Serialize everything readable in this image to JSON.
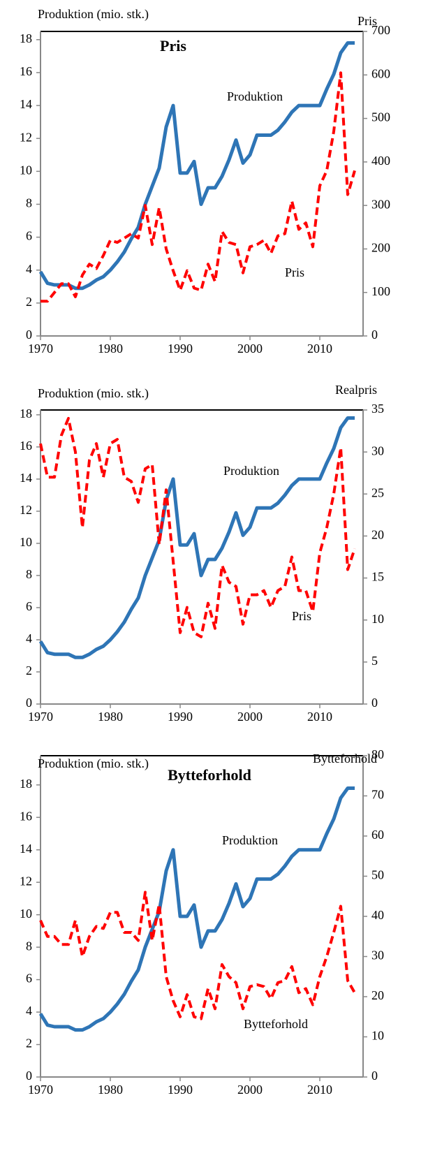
{
  "chart_data": [
    {
      "type": "line",
      "title": "Pris",
      "ylabel": "Produktion (mio. stk.)",
      "y2label": "Pris",
      "x": [
        1970,
        1971,
        1972,
        1973,
        1974,
        1975,
        1976,
        1977,
        1978,
        1979,
        1980,
        1981,
        1982,
        1983,
        1984,
        1985,
        1986,
        1987,
        1988,
        1989,
        1990,
        1991,
        1992,
        1993,
        1994,
        1995,
        1996,
        1997,
        1998,
        1999,
        2000,
        2001,
        2002,
        2003,
        2004,
        2005,
        2006,
        2007,
        2008,
        2009,
        2010,
        2011,
        2012,
        2013,
        2014,
        2015
      ],
      "xlim": [
        1970,
        2016.2
      ],
      "xticks": [
        1970,
        1980,
        1990,
        2000,
        2010
      ],
      "ylim": [
        0,
        18.5
      ],
      "yticks": [
        0,
        2,
        4,
        6,
        8,
        10,
        12,
        14,
        16,
        18
      ],
      "y2lim": [
        0,
        700
      ],
      "y2ticks": [
        0,
        100,
        200,
        300,
        400,
        500,
        600,
        700
      ],
      "grid": false,
      "series": [
        {
          "name": "Produktion",
          "color": "#2e75b6",
          "dash": false,
          "values": [
            3.9,
            3.2,
            3.1,
            3.1,
            3.1,
            2.9,
            2.9,
            3.1,
            3.4,
            3.6,
            4.0,
            4.5,
            5.1,
            5.9,
            6.6,
            8.0,
            9.1,
            10.2,
            12.7,
            14.0,
            9.9,
            9.9,
            10.6,
            8.0,
            9.0,
            9.0,
            9.7,
            10.7,
            11.9,
            10.5,
            11.0,
            12.2,
            12.2,
            12.2,
            12.5,
            13.0,
            13.6,
            14.0,
            14.0,
            14.0,
            14.0,
            15.0,
            15.9,
            17.2,
            17.8,
            17.8
          ]
        },
        {
          "name": "Pris",
          "color": "#ff0000",
          "dash": true,
          "axis": "y2",
          "values": [
            80,
            80,
            100,
            120,
            120,
            90,
            140,
            165,
            155,
            185,
            220,
            215,
            225,
            235,
            225,
            300,
            210,
            295,
            200,
            150,
            105,
            150,
            110,
            105,
            165,
            125,
            240,
            215,
            210,
            145,
            205,
            210,
            220,
            190,
            230,
            235,
            310,
            245,
            260,
            205,
            345,
            380,
            470,
            605,
            325,
            380
          ]
        }
      ]
    },
    {
      "type": "line",
      "ylabel": "Produktion (mio. stk.)",
      "y2label": "Realpris",
      "x": [
        1970,
        1971,
        1972,
        1973,
        1974,
        1975,
        1976,
        1977,
        1978,
        1979,
        1980,
        1981,
        1982,
        1983,
        1984,
        1985,
        1986,
        1987,
        1988,
        1989,
        1990,
        1991,
        1992,
        1993,
        1994,
        1995,
        1996,
        1997,
        1998,
        1999,
        2000,
        2001,
        2002,
        2003,
        2004,
        2005,
        2006,
        2007,
        2008,
        2009,
        2010,
        2011,
        2012,
        2013,
        2014,
        2015
      ],
      "xlim": [
        1970,
        2016.2
      ],
      "xticks": [
        1970,
        1980,
        1990,
        2000,
        2010
      ],
      "ylim": [
        0,
        18.3
      ],
      "yticks": [
        0,
        2,
        4,
        6,
        8,
        10,
        12,
        14,
        16,
        18
      ],
      "y2lim": [
        0,
        35
      ],
      "y2ticks": [
        0,
        5,
        10,
        15,
        20,
        25,
        30,
        35
      ],
      "grid": false,
      "series": [
        {
          "name": "Produktion",
          "color": "#2e75b6",
          "dash": false,
          "values": [
            3.9,
            3.2,
            3.1,
            3.1,
            3.1,
            2.9,
            2.9,
            3.1,
            3.4,
            3.6,
            4.0,
            4.5,
            5.1,
            5.9,
            6.6,
            8.0,
            9.1,
            10.2,
            12.7,
            14.0,
            9.9,
            9.9,
            10.6,
            8.0,
            9.0,
            9.0,
            9.7,
            10.7,
            11.9,
            10.5,
            11.0,
            12.2,
            12.2,
            12.2,
            12.5,
            13.0,
            13.6,
            14.0,
            14.0,
            14.0,
            14.0,
            15.0,
            15.9,
            17.2,
            17.8,
            17.8
          ]
        },
        {
          "name": "Pris",
          "color": "#ff0000",
          "dash": true,
          "axis": "y2",
          "values": [
            31,
            27,
            27,
            32,
            34,
            30,
            21,
            29,
            31,
            27,
            31,
            31.5,
            27,
            26.5,
            24,
            28,
            28.5,
            19,
            25.5,
            17,
            8.5,
            11.5,
            8.5,
            8,
            12,
            9,
            16.5,
            14.5,
            14,
            9.5,
            13,
            13,
            13.5,
            11.5,
            13.5,
            14,
            17.5,
            13.5,
            13.5,
            11,
            18,
            21,
            25,
            30.5,
            16,
            18.5
          ]
        }
      ]
    },
    {
      "type": "line",
      "title": "Bytteforhold",
      "ylabel": "Produktion (mio. stk.)",
      "y2label": "Bytteforhold",
      "x": [
        1970,
        1971,
        1972,
        1973,
        1974,
        1975,
        1976,
        1977,
        1978,
        1979,
        1980,
        1981,
        1982,
        1983,
        1984,
        1985,
        1986,
        1987,
        1988,
        1989,
        1990,
        1991,
        1992,
        1993,
        1994,
        1995,
        1996,
        1997,
        1998,
        1999,
        2000,
        2001,
        2002,
        2003,
        2004,
        2005,
        2006,
        2007,
        2008,
        2009,
        2010,
        2011,
        2012,
        2013,
        2014,
        2015
      ],
      "xlim": [
        1970,
        2016.2
      ],
      "xticks": [
        1970,
        1980,
        1990,
        2000,
        2010
      ],
      "ylim": [
        0,
        19.8
      ],
      "yticks": [
        0,
        2,
        4,
        6,
        8,
        10,
        12,
        14,
        16,
        18
      ],
      "y2lim": [
        0,
        80
      ],
      "y2ticks": [
        0,
        10,
        20,
        30,
        40,
        50,
        60,
        70,
        80
      ],
      "grid": false,
      "series": [
        {
          "name": "Produktion",
          "color": "#2e75b6",
          "dash": false,
          "values": [
            3.9,
            3.2,
            3.1,
            3.1,
            3.1,
            2.9,
            2.9,
            3.1,
            3.4,
            3.6,
            4.0,
            4.5,
            5.1,
            5.9,
            6.6,
            8.0,
            9.1,
            10.2,
            12.7,
            14.0,
            9.9,
            9.9,
            10.6,
            8.0,
            9.0,
            9.0,
            9.7,
            10.7,
            11.9,
            10.5,
            11.0,
            12.2,
            12.2,
            12.2,
            12.5,
            13.0,
            13.6,
            14.0,
            14.0,
            14.0,
            14.0,
            15.0,
            15.9,
            17.2,
            17.8,
            17.8
          ]
        },
        {
          "name": "Bytteforhold",
          "color": "#ff0000",
          "dash": true,
          "axis": "y2",
          "values": [
            39,
            35,
            35,
            33,
            33,
            39,
            30,
            35,
            37.5,
            37,
            41,
            41,
            36,
            36,
            34,
            46,
            34,
            43,
            25,
            19,
            15,
            20.5,
            15,
            14.5,
            22,
            17,
            28,
            25,
            23.5,
            17,
            22.5,
            23,
            22.5,
            19.5,
            23.5,
            24,
            27.5,
            21,
            22,
            18,
            25,
            30,
            36,
            42.5,
            24,
            21
          ]
        }
      ]
    }
  ]
}
